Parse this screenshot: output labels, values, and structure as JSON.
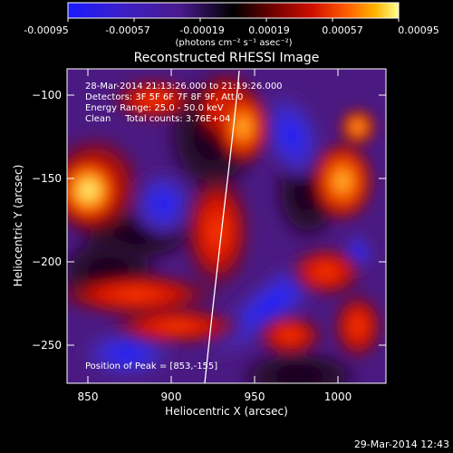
{
  "colorbar": {
    "ticks": [
      "-0.00095",
      "-0.00057",
      "-0.00019",
      "0.00019",
      "0.00057",
      "0.00095"
    ],
    "units_label": "(photons cm⁻² s⁻¹ asec⁻²)",
    "colors": [
      "#1a1aff",
      "#3b1fc9",
      "#4a1a8c",
      "#000000",
      "#7a0000",
      "#d01000",
      "#ff5a00",
      "#ffb400",
      "#ffff90"
    ]
  },
  "plot": {
    "title": "Reconstructed RHESSI Image",
    "xlabel": "Heliocentric X (arcsec)",
    "ylabel": "Heliocentric Y (arcsec)",
    "x_ticks": [
      "850",
      "900",
      "950",
      "1000"
    ],
    "y_ticks": [
      "−100",
      "−150",
      "−200",
      "−250"
    ]
  },
  "info": {
    "line1": "28-Mar-2014 21:13:26.000 to 21:19:26.000",
    "line2": "Detectors: 3F 5F 6F 7F 8F 9F, Att 0",
    "line3": "Energy Range: 25.0 - 50.0 keV",
    "line4": "Clean     Total counts: 3.76E+04",
    "peak": "Position of Peak = [853,-155]"
  },
  "footer": {
    "timestamp": "29-Mar-2014 12:43"
  }
}
